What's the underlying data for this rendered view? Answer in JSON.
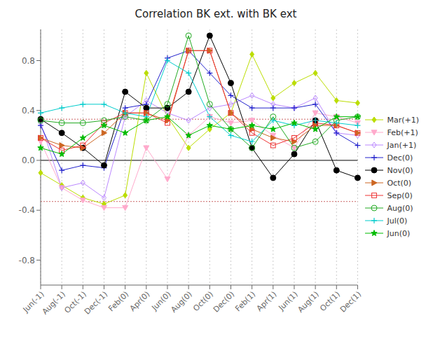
{
  "chart_data": {
    "type": "line",
    "title": "Correlation BK ext. with BK ext",
    "categories": [
      "Jun(-1)",
      "Aug(-1)",
      "Oct(-1)",
      "Dec(-1)",
      "Feb(0)",
      "Apr(0)",
      "Jun(0)",
      "Aug(0)",
      "Oct(0)",
      "Dec(0)",
      "Feb(1)",
      "Apr(1)",
      "Jun(1)",
      "Aug(1)",
      "Oct(1)",
      "Dec(1)"
    ],
    "ylim": [
      -1.0,
      1.05
    ],
    "yticks": [
      -0.8,
      -0.4,
      {
        "value": 0.0,
        "label": "0.0"
      },
      0.4,
      0.8
    ],
    "hlines": [
      -0.33,
      0,
      0.33
    ],
    "grid": "x",
    "legend": "right",
    "series": [
      {
        "name": "Mar(+1)",
        "color": "#bbdd00",
        "marker": "diamond",
        "values": [
          -0.1,
          -0.2,
          -0.3,
          -0.35,
          -0.28,
          0.7,
          0.35,
          0.1,
          0.25,
          0.38,
          0.85,
          0.5,
          0.62,
          0.7,
          0.48,
          0.46
        ]
      },
      {
        "name": "Feb(+1)",
        "color": "#ffaacc",
        "marker": "triangle-down",
        "values": [
          0.15,
          -0.22,
          -0.32,
          -0.38,
          -0.38,
          0.1,
          -0.15,
          0.2,
          0.35,
          0.3,
          0.32,
          0.2,
          0.1,
          0.38,
          0.35,
          0.3
        ]
      },
      {
        "name": "Jan(+1)",
        "color": "#bb88ff",
        "marker": "diamond-open",
        "values": [
          0.3,
          -0.22,
          -0.18,
          -0.3,
          0.35,
          0.48,
          0.38,
          0.32,
          0.42,
          0.45,
          0.52,
          0.45,
          0.42,
          0.5,
          0.22,
          0.2
        ]
      },
      {
        "name": "Dec(0)",
        "color": "#2222cc",
        "marker": "plus",
        "values": [
          0.28,
          -0.08,
          -0.04,
          -0.06,
          0.42,
          0.45,
          0.82,
          0.88,
          0.7,
          0.52,
          0.42,
          0.42,
          0.42,
          0.45,
          0.22,
          0.12
        ]
      },
      {
        "name": "Nov(0)",
        "color": "#000000",
        "marker": "circle",
        "values": [
          0.33,
          0.22,
          0.1,
          -0.04,
          0.55,
          0.42,
          0.42,
          0.55,
          1.0,
          0.62,
          0.1,
          -0.14,
          0.05,
          0.32,
          -0.08,
          -0.14
        ]
      },
      {
        "name": "Oct(0)",
        "color": "#cc6622",
        "marker": "triangle-right",
        "values": [
          0.18,
          0.12,
          0.1,
          0.22,
          0.38,
          0.38,
          0.32,
          0.88,
          0.88,
          0.38,
          0.25,
          0.18,
          0.15,
          0.28,
          0.28,
          0.22
        ]
      },
      {
        "name": "Sep(0)",
        "color": "#ee3333",
        "marker": "square-open",
        "values": [
          0.18,
          0.08,
          0.12,
          0.3,
          0.38,
          0.38,
          0.3,
          0.88,
          0.88,
          0.38,
          0.22,
          0.12,
          0.18,
          0.3,
          0.28,
          0.22
        ]
      },
      {
        "name": "Aug(0)",
        "color": "#22aa22",
        "marker": "circle-open",
        "values": [
          0.32,
          0.3,
          0.3,
          0.32,
          0.35,
          0.32,
          0.45,
          1.0,
          0.45,
          0.25,
          0.1,
          0.35,
          0.1,
          0.15,
          0.32,
          0.35
        ]
      },
      {
        "name": "Jul(0)",
        "color": "#00cccc",
        "marker": "plus",
        "values": [
          0.38,
          0.42,
          0.45,
          0.45,
          0.38,
          0.35,
          0.8,
          0.7,
          0.35,
          0.2,
          0.15,
          0.32,
          0.28,
          0.32,
          0.3,
          0.28
        ]
      },
      {
        "name": "Jun(0)",
        "color": "#00bb00",
        "marker": "star",
        "values": [
          0.1,
          0.05,
          0.18,
          0.28,
          0.22,
          0.32,
          0.35,
          0.2,
          0.28,
          0.25,
          0.28,
          0.25,
          0.3,
          0.25,
          0.35,
          0.35
        ]
      }
    ]
  }
}
